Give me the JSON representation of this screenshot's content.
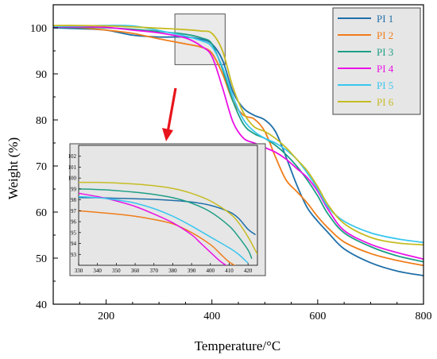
{
  "colors": {
    "PI 1": "#1f6fa8",
    "PI 2": "#f07d1a",
    "PI 3": "#1f9e86",
    "PI 4": "#ea12e6",
    "PI 5": "#39c6ee",
    "PI 6": "#c6bc24",
    "arrow": "#e8141c",
    "panel_fill": "#e6e6e6",
    "inset_fill": "#e6e6e6"
  },
  "chart_data": [
    {
      "type": "line",
      "xlabel": "Temperature/°C",
      "ylabel": "Weight  (%)",
      "xlim": [
        100,
        800
      ],
      "ylim": [
        40,
        105
      ],
      "xticks": [
        200,
        400,
        600,
        800
      ],
      "yticks": [
        40,
        50,
        60,
        70,
        80,
        90,
        100
      ],
      "legend": {
        "position": "top-right"
      },
      "zoom_box": {
        "x": [
          330,
          425
        ],
        "y": [
          92,
          103
        ]
      },
      "series": [
        {
          "name": "PI 1",
          "x": [
            100,
            150,
            200,
            250,
            300,
            350,
            380,
            400,
            420,
            440,
            460,
            480,
            500,
            520,
            540,
            560,
            580,
            600,
            620,
            650,
            700,
            750,
            800
          ],
          "y": [
            100,
            99.8,
            99.5,
            98.4,
            98,
            98,
            97.5,
            96.5,
            93,
            86,
            82.5,
            81,
            80,
            77.5,
            72,
            66,
            61,
            58,
            55.5,
            52,
            49,
            47.2,
            46.2
          ]
        },
        {
          "name": "PI 2",
          "x": [
            100,
            150,
            200,
            250,
            300,
            350,
            380,
            400,
            420,
            440,
            460,
            480,
            500,
            520,
            540,
            560,
            580,
            600,
            620,
            650,
            700,
            750,
            800
          ],
          "y": [
            100.2,
            100,
            99.5,
            98.8,
            97.6,
            96.5,
            95.8,
            94.5,
            90,
            84,
            81,
            80.2,
            77.5,
            72,
            67,
            64.5,
            62,
            59,
            56.5,
            53.5,
            51,
            49.5,
            48.4
          ]
        },
        {
          "name": "PI 3",
          "x": [
            100,
            150,
            200,
            250,
            300,
            350,
            380,
            400,
            420,
            440,
            460,
            480,
            500,
            520,
            540,
            560,
            580,
            600,
            620,
            650,
            700,
            750,
            800
          ],
          "y": [
            100.1,
            100.1,
            100,
            99.7,
            99.2,
            98.6,
            97.8,
            96.5,
            91,
            84,
            79,
            77,
            76,
            74.5,
            72.5,
            70,
            67,
            63.5,
            59.5,
            55.5,
            52.5,
            50.5,
            49.2
          ]
        },
        {
          "name": "PI 4",
          "x": [
            100,
            150,
            200,
            250,
            300,
            350,
            380,
            400,
            420,
            440,
            460,
            480,
            500,
            520,
            540,
            560,
            580,
            600,
            620,
            650,
            700,
            750,
            800
          ],
          "y": [
            100.2,
            100.2,
            100.1,
            99.5,
            98.9,
            97.8,
            96,
            93.8,
            87,
            79.5,
            76,
            75,
            74,
            73,
            71.5,
            69.5,
            67.5,
            64.5,
            60.5,
            56,
            53,
            51.2,
            49.8
          ]
        },
        {
          "name": "PI 5",
          "x": [
            100,
            150,
            200,
            250,
            300,
            350,
            380,
            400,
            420,
            440,
            460,
            480,
            500,
            520,
            540,
            560,
            580,
            600,
            620,
            650,
            700,
            750,
            800
          ],
          "y": [
            100.3,
            100.4,
            100.5,
            100.4,
            99.4,
            98.2,
            97.2,
            95.9,
            91.5,
            85,
            80,
            77.5,
            76,
            75,
            73.5,
            71.5,
            68.5,
            65,
            61,
            58,
            55.5,
            54.2,
            53.4
          ]
        },
        {
          "name": "PI 6",
          "x": [
            100,
            150,
            200,
            250,
            300,
            350,
            380,
            400,
            420,
            440,
            460,
            480,
            500,
            520,
            540,
            560,
            580,
            600,
            620,
            650,
            700,
            750,
            800
          ],
          "y": [
            100.5,
            100.5,
            100.4,
            100.2,
            99.9,
            99.6,
            99.3,
            98.8,
            95,
            87,
            81.5,
            78.5,
            77.5,
            76,
            74,
            71.5,
            69,
            65.5,
            61.5,
            57.5,
            54.5,
            53.3,
            52.9
          ]
        }
      ]
    },
    {
      "type": "line",
      "panel": "inset",
      "xlim": [
        330,
        425
      ],
      "ylim": [
        92,
        103
      ],
      "xticks": [
        330,
        340,
        350,
        360,
        370,
        380,
        390,
        400,
        410,
        420
      ],
      "yticks": [
        93,
        94,
        95,
        96,
        97,
        98,
        99,
        100,
        101,
        102
      ],
      "series": [
        {
          "name": "PI 1",
          "x": [
            330,
            340,
            350,
            360,
            370,
            380,
            390,
            400,
            410,
            415,
            420,
            424
          ],
          "y": [
            98.2,
            98.2,
            98.15,
            98.1,
            98.05,
            97.95,
            97.8,
            97.5,
            96.9,
            96.3,
            95.3,
            94.8
          ]
        },
        {
          "name": "PI 2",
          "x": [
            330,
            340,
            350,
            360,
            370,
            380,
            390,
            400,
            405,
            410,
            415
          ],
          "y": [
            97.0,
            96.85,
            96.7,
            96.5,
            96.2,
            95.8,
            95.0,
            93.9,
            93.1,
            92.3,
            91.8
          ]
        },
        {
          "name": "PI 3",
          "x": [
            330,
            340,
            350,
            360,
            370,
            380,
            390,
            400,
            410,
            415,
            420,
            422
          ],
          "y": [
            99.0,
            98.95,
            98.85,
            98.7,
            98.5,
            98.2,
            97.7,
            96.9,
            95.6,
            94.6,
            93.4,
            92.6
          ]
        },
        {
          "name": "PI 4",
          "x": [
            330,
            340,
            350,
            360,
            370,
            380,
            390,
            395,
            400,
            405,
            410
          ],
          "y": [
            98.6,
            98.3,
            97.9,
            97.4,
            96.7,
            95.9,
            94.8,
            94.0,
            93.2,
            92.4,
            91.8
          ]
        },
        {
          "name": "PI 5",
          "x": [
            330,
            340,
            350,
            360,
            370,
            380,
            390,
            400,
            410,
            415,
            420
          ],
          "y": [
            98.3,
            98.2,
            98.0,
            97.7,
            97.2,
            96.5,
            95.6,
            94.6,
            93.6,
            93.0,
            92.2
          ]
        },
        {
          "name": "PI 6",
          "x": [
            330,
            340,
            350,
            360,
            370,
            380,
            390,
            400,
            410,
            415,
            420,
            425
          ],
          "y": [
            99.6,
            99.6,
            99.55,
            99.45,
            99.3,
            99.05,
            98.6,
            97.9,
            96.8,
            95.9,
            94.6,
            93.0
          ]
        }
      ]
    }
  ]
}
